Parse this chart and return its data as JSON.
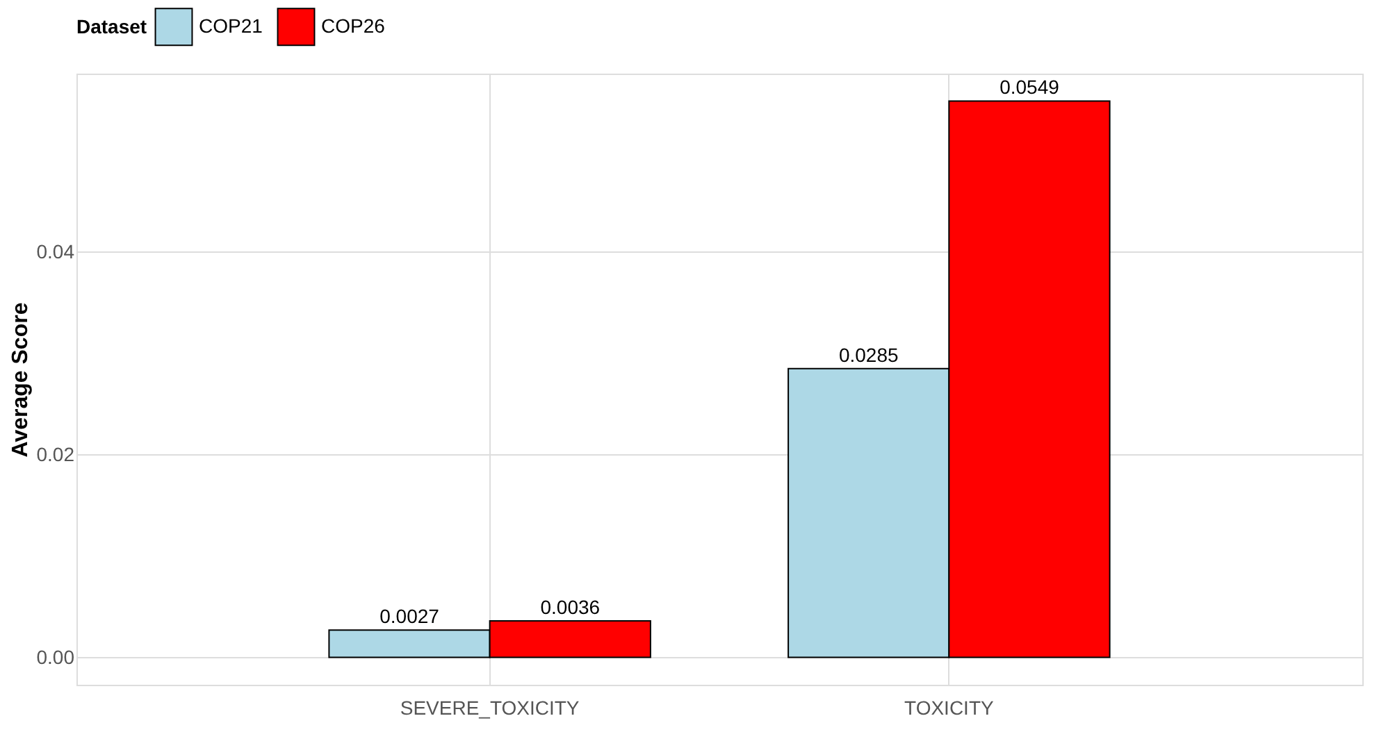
{
  "chart_data": {
    "type": "bar",
    "ylabel": "Average Score",
    "legend_title": "Dataset",
    "legend": "top",
    "grid": true,
    "data_labels": true,
    "categories": [
      "SEVERE_TOXICITY",
      "TOXICITY"
    ],
    "series": [
      {
        "name": "COP21",
        "color": "#add8e6",
        "values": [
          0.0027,
          0.0285
        ]
      },
      {
        "name": "COP26",
        "color": "#ff0000",
        "values": [
          0.0036,
          0.0549
        ]
      }
    ],
    "ylim": [
      -0.0027,
      0.0576
    ],
    "yticks": [
      {
        "value": 0,
        "label": "0.00"
      },
      {
        "value": 0.02,
        "label": "0.02"
      },
      {
        "value": 0.04,
        "label": "0.04"
      }
    ]
  }
}
